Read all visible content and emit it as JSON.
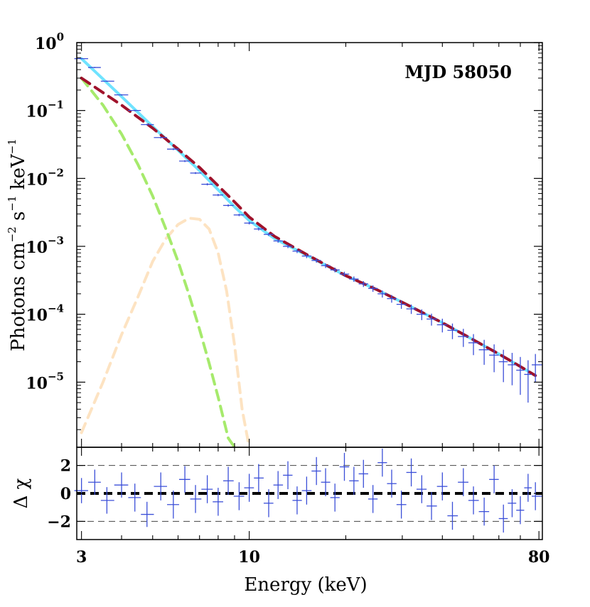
{
  "chart_data": {
    "type": "line",
    "annotation": "MJD 58050",
    "xlabel": "Energy (keV)",
    "x_scale": "log",
    "xlim": [
      2.9,
      82
    ],
    "x_ticks": [
      3,
      10,
      80
    ],
    "x_tick_labels": [
      "3",
      "10",
      "80"
    ],
    "top_panel": {
      "ylabel": {
        "base": "Photons cm",
        "exp1": "−2",
        "mid": " s",
        "exp2": "−1",
        "unit": " keV",
        "exp3": "−1"
      },
      "y_scale": "log",
      "ylim": [
        1.1e-06,
        1.0
      ],
      "y_ticks": [
        {
          "value": 1.0,
          "base": "10",
          "exp": "0"
        },
        {
          "value": 0.1,
          "base": "10",
          "exp": "−1"
        },
        {
          "value": 0.01,
          "base": "10",
          "exp": "−2"
        },
        {
          "value": 0.001,
          "base": "10",
          "exp": "−3"
        },
        {
          "value": 0.0001,
          "base": "10",
          "exp": "−4"
        },
        {
          "value": 1e-05,
          "base": "10",
          "exp": "−5"
        }
      ],
      "series": [
        {
          "name": "data",
          "style": "errorbar",
          "color": "#3b4fd8",
          "x": [
            3.0,
            3.3,
            3.6,
            4.0,
            4.4,
            4.8,
            5.3,
            5.8,
            6.3,
            6.8,
            7.4,
            8.0,
            8.6,
            9.3,
            10.0,
            10.7,
            11.5,
            12.3,
            13.2,
            14.1,
            15.1,
            16.2,
            17.3,
            18.5,
            19.8,
            21.2,
            22.7,
            24.3,
            26.0,
            27.8,
            29.8,
            32.0,
            34.5,
            37.0,
            40.0,
            43.0,
            46.5,
            50.0,
            54.0,
            58.0,
            62.0,
            66.0,
            70.0,
            74.0,
            78.0
          ],
          "y": [
            0.58,
            0.43,
            0.27,
            0.17,
            0.1,
            0.062,
            0.04,
            0.027,
            0.018,
            0.012,
            0.0082,
            0.0057,
            0.004,
            0.0029,
            0.0022,
            0.0018,
            0.0015,
            0.0012,
            0.001,
            0.00085,
            0.00072,
            0.00062,
            0.00052,
            0.00045,
            0.00039,
            0.00033,
            0.00028,
            0.00024,
            0.0002,
            0.00017,
            0.00014,
            0.00012,
            0.0001,
            8.5e-05,
            7e-05,
            5.8e-05,
            4.7e-05,
            3.8e-05,
            3e-05,
            2.5e-05,
            2e-05,
            1.8e-05,
            1.5e-05,
            1.3e-05,
            1.8e-05
          ],
          "y_err": [
            0.01,
            0.008,
            0.006,
            0.004,
            0.0025,
            0.0018,
            0.0012,
            0.0009,
            0.0006,
            0.0004,
            0.0003,
            0.00022,
            0.00016,
            0.00012,
            0.0001,
            9e-05,
            8e-05,
            7e-05,
            6e-05,
            5.5e-05,
            5e-05,
            4.5e-05,
            4e-05,
            3.6e-05,
            3.3e-05,
            3e-05,
            2.8e-05,
            2.6e-05,
            2.4e-05,
            2.2e-05,
            2e-05,
            1.9e-05,
            1.8e-05,
            1.7e-05,
            1.6e-05,
            1.5e-05,
            1.4e-05,
            1.3e-05,
            1.2e-05,
            1.1e-05,
            1e-05,
            9e-06,
            8.5e-06,
            8e-06,
            8e-06
          ]
        },
        {
          "name": "total model",
          "style": "solid",
          "color": "#6fe3ff",
          "x": [
            3.0,
            4.0,
            5.0,
            6.0,
            7.0,
            8.0,
            9.0,
            10.0,
            12.0,
            15.0,
            20.0,
            25.0,
            30.0,
            40.0,
            50.0,
            60.0,
            70.0,
            78.0
          ],
          "y": [
            0.58,
            0.16,
            0.058,
            0.026,
            0.013,
            0.0068,
            0.0038,
            0.0024,
            0.0013,
            0.00075,
            0.00037,
            0.00023,
            0.00015,
            7.5e-05,
            4.2e-05,
            2.6e-05,
            1.7e-05,
            1.25e-05
          ]
        },
        {
          "name": "power law",
          "style": "dashed",
          "color": "#a0122b",
          "x": [
            3.0,
            4.0,
            5.0,
            6.0,
            7.0,
            8.0,
            9.0,
            10.0,
            12.0,
            15.0,
            20.0,
            25.0,
            30.0,
            40.0,
            50.0,
            60.0,
            70.0,
            78.0
          ],
          "y": [
            0.3,
            0.12,
            0.055,
            0.027,
            0.0145,
            0.0078,
            0.0045,
            0.0027,
            0.0014,
            0.00077,
            0.00037,
            0.00023,
            0.00015,
            7.5e-05,
            4.2e-05,
            2.6e-05,
            1.7e-05,
            1.25e-05
          ]
        },
        {
          "name": "soft component",
          "style": "dashed",
          "color": "#a6ea6c",
          "x": [
            3.0,
            3.5,
            4.0,
            4.5,
            5.0,
            5.5,
            6.0,
            6.5,
            7.0,
            7.5,
            8.0,
            8.6,
            9.0
          ],
          "y": [
            0.3,
            0.12,
            0.045,
            0.016,
            0.0055,
            0.0018,
            0.0006,
            0.00019,
            6e-05,
            1.9e-05,
            6e-06,
            1.5e-06,
            5e-07
          ]
        },
        {
          "name": "gaussian line",
          "style": "dashed",
          "color": "#fde3c2",
          "x": [
            3.0,
            3.5,
            4.0,
            4.5,
            5.0,
            5.5,
            6.0,
            6.5,
            7.0,
            7.5,
            8.0,
            8.5,
            9.0,
            9.5,
            10.0
          ],
          "y": [
            1.8e-06,
            1e-05,
            5e-05,
            0.00018,
            0.0006,
            0.0013,
            0.0021,
            0.0026,
            0.0025,
            0.0018,
            0.0008,
            0.00022,
            3.5e-05,
            4e-06,
            1.1e-06
          ]
        }
      ]
    },
    "bottom_panel": {
      "ylabel": "Δ χ",
      "ylim": [
        -3.3,
        3.3
      ],
      "y_ticks": [
        2,
        0,
        -2
      ],
      "y_tick_labels": [
        "2",
        "0",
        "−2"
      ],
      "reference_lines": [
        {
          "y": 0,
          "style": "thick-dashed",
          "color": "#000000"
        },
        {
          "y": 2,
          "style": "thin-dashed",
          "color": "#444444"
        },
        {
          "y": -2,
          "style": "thin-dashed",
          "color": "#444444"
        }
      ],
      "residuals": {
        "color": "#3b4fd8",
        "x": [
          3.0,
          3.3,
          3.6,
          4.0,
          4.4,
          4.8,
          5.3,
          5.8,
          6.3,
          6.8,
          7.4,
          8.0,
          8.6,
          9.3,
          10.0,
          10.7,
          11.5,
          12.3,
          13.2,
          14.1,
          15.1,
          16.2,
          17.3,
          18.5,
          19.8,
          21.2,
          22.7,
          24.3,
          26.0,
          27.8,
          29.8,
          32.0,
          34.5,
          37.0,
          40.0,
          43.0,
          46.5,
          50.0,
          54.0,
          58.0,
          62.0,
          66.0,
          70.0,
          74.0,
          78.0
        ],
        "y": [
          0.2,
          0.8,
          -0.5,
          0.6,
          -0.3,
          -1.5,
          0.5,
          -0.8,
          1.0,
          -0.4,
          0.3,
          -0.6,
          0.9,
          -0.2,
          0.4,
          1.1,
          -0.7,
          0.6,
          1.3,
          -0.5,
          0.2,
          1.6,
          0.8,
          -0.3,
          1.9,
          0.9,
          1.4,
          -0.4,
          2.2,
          0.7,
          -0.8,
          1.5,
          0.3,
          -0.9,
          0.5,
          -1.6,
          0.8,
          -0.5,
          -1.3,
          1.0,
          -1.8,
          -0.7,
          -1.2,
          0.4,
          -0.2
        ],
        "err": [
          0.9,
          0.9,
          0.95,
          0.9,
          1.0,
          0.9,
          1.0,
          1.0,
          0.95,
          1.0,
          1.0,
          1.0,
          1.0,
          1.0,
          1.0,
          1.0,
          1.0,
          1.0,
          1.0,
          1.0,
          1.0,
          1.0,
          1.0,
          1.0,
          1.0,
          1.0,
          1.0,
          1.0,
          1.0,
          1.0,
          1.0,
          1.0,
          1.0,
          1.0,
          1.0,
          1.0,
          1.0,
          1.0,
          1.0,
          1.0,
          1.0,
          1.0,
          1.0,
          1.0,
          1.0
        ]
      }
    }
  }
}
